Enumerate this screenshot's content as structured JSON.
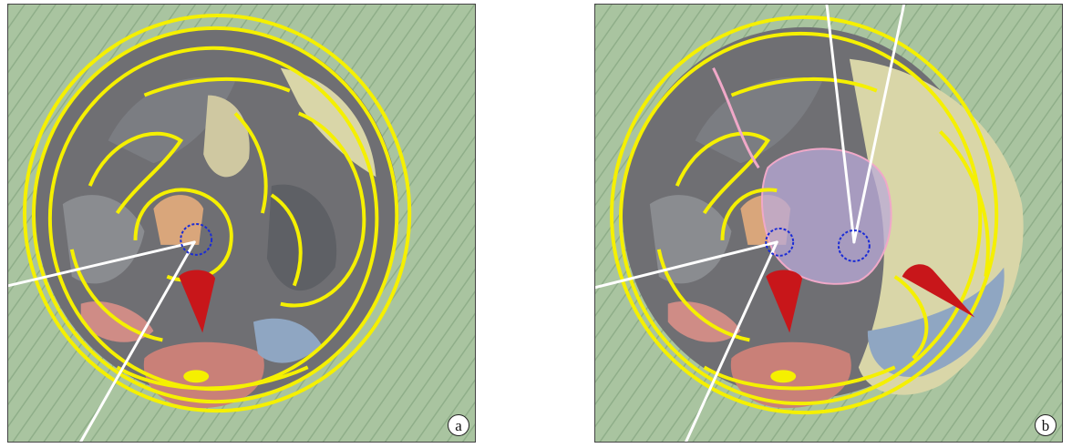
{
  "figure": {
    "panels": [
      {
        "id": "a",
        "label": "a"
      },
      {
        "id": "b",
        "label": "b"
      }
    ]
  },
  "colors": {
    "background_tissue": "#a9c4a0",
    "contour_lines": "#f5f000",
    "probe_lines": "#ffffff",
    "target_circle": "#1a2bd6",
    "cone_marker": "#c8161a",
    "tumor_overlay": "#b9a9d8"
  }
}
